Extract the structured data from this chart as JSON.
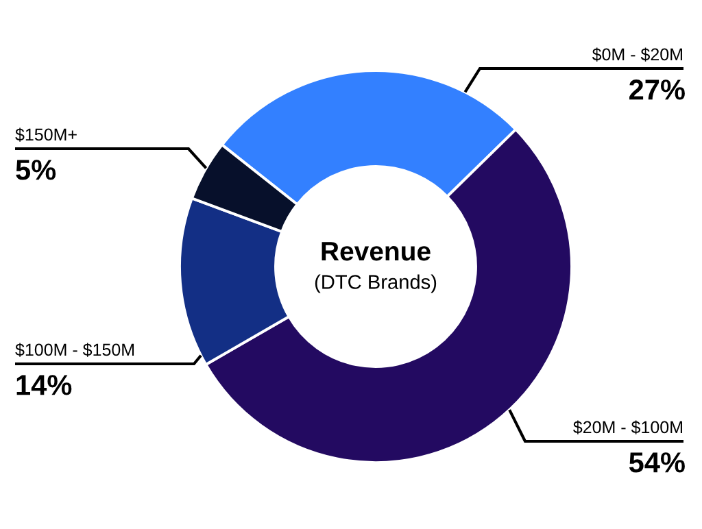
{
  "chart_data": {
    "type": "donut",
    "title": "Revenue",
    "subtitle": "(DTC Brands)",
    "categories": [
      "$0M - $20M",
      "$20M - $100M",
      "$100M - $150M",
      "$150M+"
    ],
    "values": [
      27,
      54,
      14,
      5
    ],
    "colors": [
      "#3380ff",
      "#230a61",
      "#132f85",
      "#07102b"
    ],
    "value_labels": [
      "27%",
      "54%",
      "14%",
      "5%"
    ]
  }
}
